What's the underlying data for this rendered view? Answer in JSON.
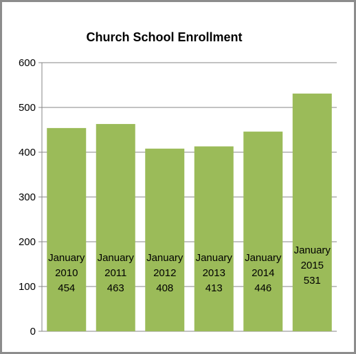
{
  "chart_data": {
    "type": "bar",
    "title": "Church School Enrollment",
    "xlabel": "",
    "ylabel": "",
    "categories": [
      "January 2010",
      "January 2011",
      "January 2012",
      "January 2013",
      "January 2014",
      "January 2015"
    ],
    "series": [
      {
        "values": [
          454,
          463,
          408,
          413,
          446,
          531
        ]
      }
    ],
    "data_labels": [
      [
        "January",
        "2010",
        "454"
      ],
      [
        "January",
        "2011",
        "463"
      ],
      [
        "January",
        "2012",
        "408"
      ],
      [
        "January",
        "2013",
        "413"
      ],
      [
        "January",
        "2014",
        "446"
      ],
      [
        "January",
        "2015",
        "531"
      ]
    ],
    "ylim": [
      0,
      600
    ],
    "yticks": [
      0,
      100,
      200,
      300,
      400,
      500,
      600
    ],
    "grid": true,
    "legend": "none",
    "bar_color": "#9bbb59",
    "grid_color": "#868686"
  }
}
